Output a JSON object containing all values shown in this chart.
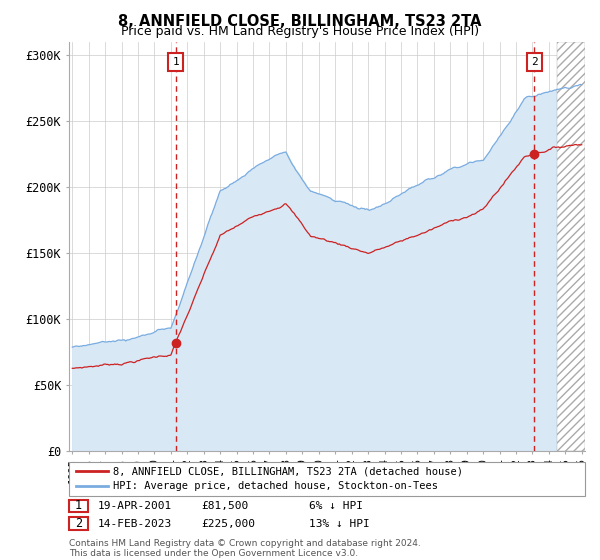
{
  "title": "8, ANNFIELD CLOSE, BILLINGHAM, TS23 2TA",
  "subtitle": "Price paid vs. HM Land Registry's House Price Index (HPI)",
  "ylabel_ticks": [
    "£0",
    "£50K",
    "£100K",
    "£150K",
    "£200K",
    "£250K",
    "£300K"
  ],
  "ytick_values": [
    0,
    50000,
    100000,
    150000,
    200000,
    250000,
    300000
  ],
  "ylim": [
    0,
    310000
  ],
  "xlim_start": 1994.8,
  "xlim_end": 2026.2,
  "hpi_color": "#7AACE0",
  "hpi_fill_color": "#D8E8F5",
  "price_color": "#CC2222",
  "marker1_date": 2001.29,
  "marker1_price": 81500,
  "marker2_date": 2023.12,
  "marker2_price": 225000,
  "legend_label1": "8, ANNFIELD CLOSE, BILLINGHAM, TS23 2TA (detached house)",
  "legend_label2": "HPI: Average price, detached house, Stockton-on-Tees",
  "table_row1": [
    "1",
    "19-APR-2001",
    "£81,500",
    "6% ↓ HPI"
  ],
  "table_row2": [
    "2",
    "14-FEB-2023",
    "£225,000",
    "13% ↓ HPI"
  ],
  "footer": "Contains HM Land Registry data © Crown copyright and database right 2024.\nThis data is licensed under the Open Government Licence v3.0.",
  "background_color": "#FFFFFF",
  "grid_color": "#CCCCCC",
  "hatch_start": 2024.5
}
